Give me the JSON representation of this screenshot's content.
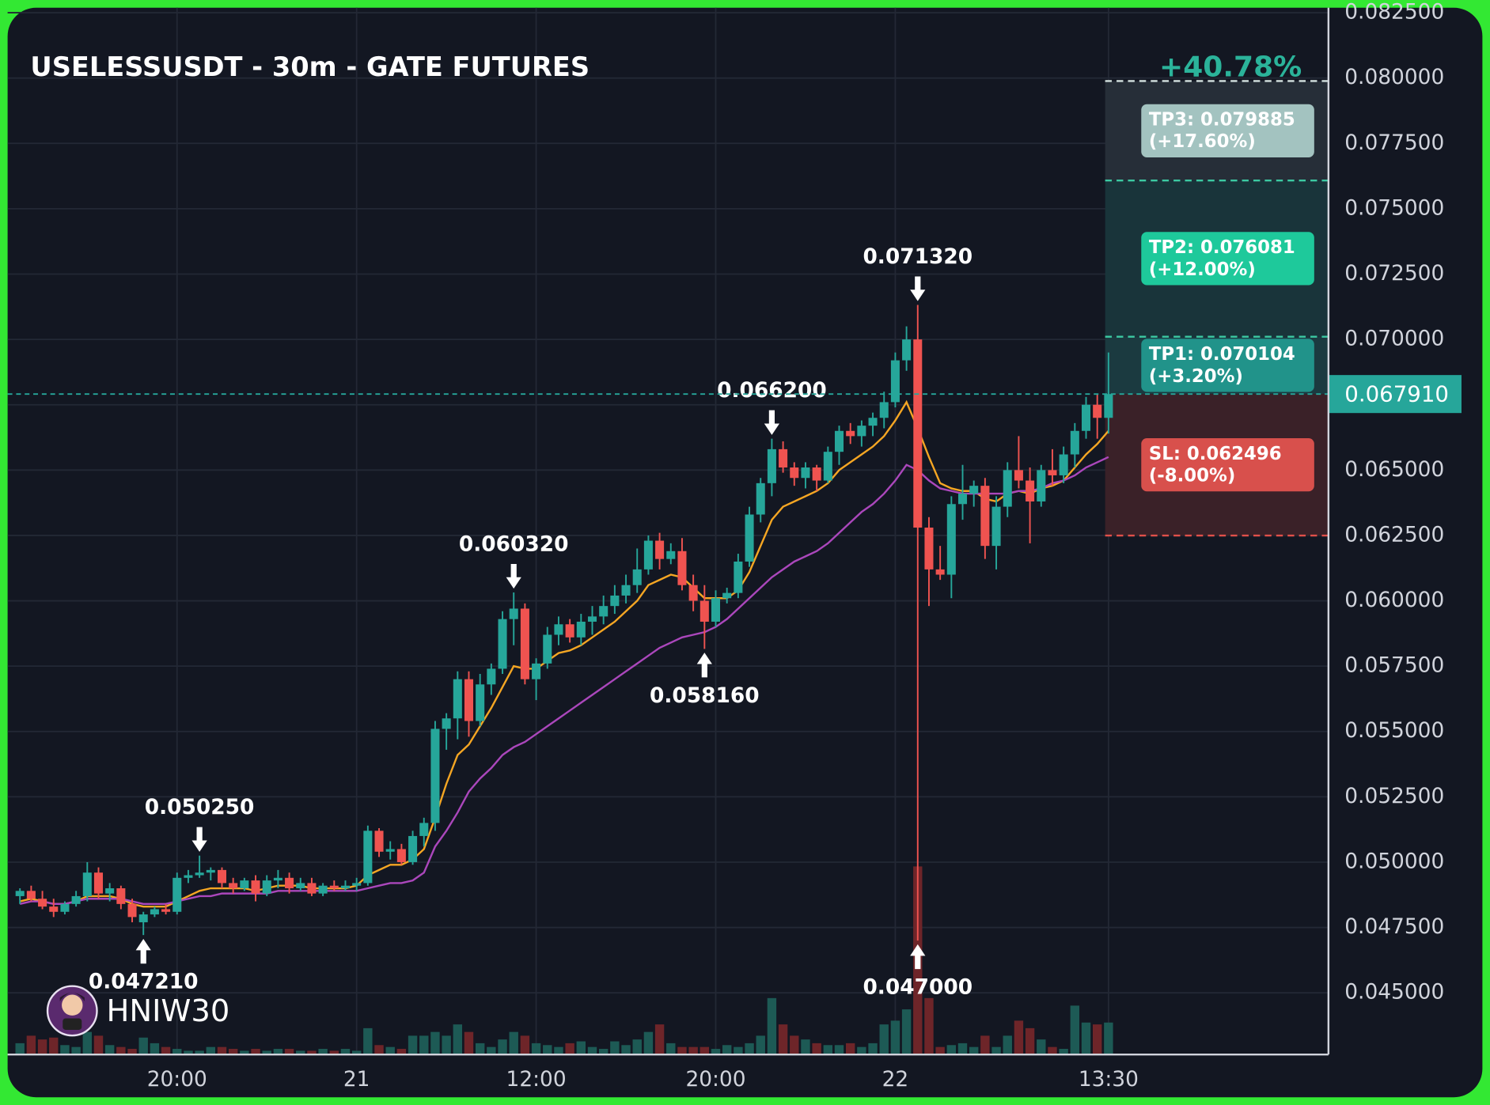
{
  "chart_data": {
    "type": "candlestick",
    "title": "USELESSUSDT - 30m - GATE FUTURES",
    "watermark": "HNIW30",
    "x": [
      0,
      1,
      2,
      3,
      4,
      5,
      6,
      7,
      8,
      9,
      10,
      11,
      12,
      13,
      14,
      15,
      16,
      17,
      18,
      19,
      20,
      21,
      22,
      23,
      24,
      25,
      26,
      27,
      28,
      29,
      30,
      31,
      32,
      33,
      34,
      35,
      36,
      37,
      38,
      39,
      40,
      41,
      42,
      43,
      44,
      45,
      46,
      47,
      48,
      49,
      50,
      51,
      52,
      53,
      54,
      55,
      56,
      57,
      58,
      59,
      60,
      61,
      62,
      63,
      64,
      65,
      66,
      67,
      68,
      69,
      70,
      71,
      72,
      73,
      74,
      75,
      76,
      77,
      78,
      79,
      80,
      81,
      82,
      83,
      84,
      85,
      86,
      87,
      88,
      89,
      90,
      91,
      92,
      93,
      94,
      95,
      96,
      97
    ],
    "open": [
      0.0487,
      0.0489,
      0.0486,
      0.0483,
      0.0481,
      0.0484,
      0.0487,
      0.0496,
      0.0488,
      0.049,
      0.0484,
      0.0477,
      0.048,
      0.0482,
      0.0481,
      0.0494,
      0.0495,
      0.0496,
      0.0497,
      0.0492,
      0.049,
      0.0493,
      0.0488,
      0.0493,
      0.0494,
      0.049,
      0.0492,
      0.0488,
      0.0491,
      0.049,
      0.0491,
      0.0492,
      0.0512,
      0.0504,
      0.0505,
      0.05,
      0.051,
      0.0515,
      0.0551,
      0.0555,
      0.057,
      0.0554,
      0.0568,
      0.0574,
      0.0593,
      0.0597,
      0.057,
      0.0576,
      0.0587,
      0.0591,
      0.0586,
      0.0592,
      0.0594,
      0.0598,
      0.0602,
      0.0606,
      0.0612,
      0.0623,
      0.0616,
      0.0619,
      0.0606,
      0.06,
      0.0592,
      0.0601,
      0.0603,
      0.0615,
      0.0633,
      0.0645,
      0.0658,
      0.0651,
      0.0647,
      0.0651,
      0.0646,
      0.0657,
      0.0665,
      0.0663,
      0.0667,
      0.067,
      0.0676,
      0.0692,
      0.07,
      0.0628,
      0.0612,
      0.061,
      0.0637,
      0.0641,
      0.0644,
      0.0621,
      0.0636,
      0.065,
      0.0646,
      0.0638,
      0.065,
      0.0648,
      0.0656,
      0.0665,
      0.0675,
      0.067
    ],
    "high": [
      0.049,
      0.0491,
      0.0489,
      0.0486,
      0.0485,
      0.0489,
      0.05,
      0.0498,
      0.0492,
      0.0491,
      0.0486,
      0.0481,
      0.0483,
      0.0484,
      0.0496,
      0.0497,
      0.05025,
      0.0498,
      0.0498,
      0.0494,
      0.0494,
      0.0495,
      0.0495,
      0.0497,
      0.0496,
      0.0494,
      0.0494,
      0.0492,
      0.0493,
      0.0493,
      0.0494,
      0.0514,
      0.0513,
      0.0508,
      0.0507,
      0.0512,
      0.0517,
      0.0554,
      0.0557,
      0.0573,
      0.0573,
      0.0572,
      0.0576,
      0.0596,
      0.06032,
      0.0599,
      0.0578,
      0.059,
      0.0594,
      0.0593,
      0.0595,
      0.0598,
      0.0602,
      0.0606,
      0.061,
      0.062,
      0.0625,
      0.0626,
      0.0622,
      0.0624,
      0.061,
      0.0606,
      0.0604,
      0.0605,
      0.0618,
      0.0636,
      0.0647,
      0.0662,
      0.0661,
      0.0653,
      0.0653,
      0.0652,
      0.0659,
      0.0667,
      0.0668,
      0.0669,
      0.0672,
      0.068,
      0.0695,
      0.0705,
      0.07132,
      0.0632,
      0.0621,
      0.064,
      0.0652,
      0.0646,
      0.0647,
      0.064,
      0.0653,
      0.0663,
      0.0651,
      0.0652,
      0.0658,
      0.0659,
      0.0668,
      0.0678,
      0.0679,
      0.0695
    ],
    "low": [
      0.0484,
      0.0485,
      0.0482,
      0.0479,
      0.048,
      0.0483,
      0.0485,
      0.0486,
      0.0485,
      0.0482,
      0.0477,
      0.04721,
      0.0479,
      0.048,
      0.048,
      0.0492,
      0.0494,
      0.0493,
      0.049,
      0.0488,
      0.0489,
      0.0485,
      0.0487,
      0.049,
      0.0488,
      0.0489,
      0.0487,
      0.0487,
      0.0489,
      0.0489,
      0.0489,
      0.0491,
      0.0502,
      0.0501,
      0.0499,
      0.0499,
      0.0506,
      0.0512,
      0.0543,
      0.0547,
      0.0548,
      0.0552,
      0.0564,
      0.0572,
      0.0583,
      0.0568,
      0.0562,
      0.0574,
      0.0583,
      0.0584,
      0.0583,
      0.0587,
      0.0591,
      0.0595,
      0.0599,
      0.0603,
      0.061,
      0.0612,
      0.0614,
      0.0604,
      0.0596,
      0.05816,
      0.059,
      0.0599,
      0.0601,
      0.0613,
      0.063,
      0.064,
      0.0649,
      0.0644,
      0.0643,
      0.0642,
      0.0645,
      0.0652,
      0.066,
      0.0659,
      0.0663,
      0.0666,
      0.0674,
      0.0688,
      0.047,
      0.0598,
      0.0608,
      0.0601,
      0.0631,
      0.0636,
      0.0616,
      0.0612,
      0.0632,
      0.0643,
      0.0622,
      0.0636,
      0.0644,
      0.0645,
      0.0651,
      0.0662,
      0.0662,
      0.0664
    ],
    "close": [
      0.0489,
      0.0486,
      0.0483,
      0.0481,
      0.0484,
      0.0487,
      0.0496,
      0.0488,
      0.049,
      0.0484,
      0.0479,
      0.048,
      0.0482,
      0.0481,
      0.0494,
      0.0495,
      0.0496,
      0.0497,
      0.0492,
      0.049,
      0.0493,
      0.0488,
      0.0493,
      0.0494,
      0.049,
      0.0492,
      0.0488,
      0.0491,
      0.049,
      0.0491,
      0.0492,
      0.0512,
      0.0504,
      0.0505,
      0.05,
      0.051,
      0.0515,
      0.0551,
      0.0555,
      0.057,
      0.0554,
      0.0568,
      0.0574,
      0.0593,
      0.0597,
      0.057,
      0.0576,
      0.0587,
      0.0591,
      0.0586,
      0.0592,
      0.0594,
      0.0598,
      0.0602,
      0.0606,
      0.0612,
      0.0623,
      0.0616,
      0.0619,
      0.0606,
      0.06,
      0.0592,
      0.0601,
      0.0603,
      0.0615,
      0.0633,
      0.0645,
      0.0658,
      0.0651,
      0.0647,
      0.0651,
      0.0646,
      0.0657,
      0.0665,
      0.0663,
      0.0667,
      0.067,
      0.0676,
      0.0692,
      0.07,
      0.0628,
      0.0612,
      0.061,
      0.0637,
      0.0641,
      0.0644,
      0.0621,
      0.0636,
      0.065,
      0.0646,
      0.0638,
      0.065,
      0.0648,
      0.0656,
      0.0665,
      0.0675,
      0.067,
      0.06791
    ],
    "volume": [
      6,
      10,
      8,
      9,
      5,
      4,
      12,
      10,
      5,
      4,
      3,
      9,
      6,
      4,
      3,
      2,
      2,
      4,
      4,
      3,
      2,
      3,
      2,
      3,
      3,
      2,
      2,
      3,
      2,
      3,
      2,
      14,
      5,
      4,
      3,
      10,
      10,
      12,
      10,
      16,
      12,
      6,
      4,
      8,
      12,
      10,
      6,
      5,
      4,
      6,
      7,
      4,
      3,
      7,
      5,
      8,
      12,
      16,
      6,
      4,
      4,
      4,
      3,
      5,
      4,
      6,
      10,
      30,
      16,
      10,
      8,
      6,
      5,
      5,
      6,
      4,
      6,
      16,
      18,
      24,
      100,
      30,
      4,
      5,
      6,
      4,
      10,
      4,
      10,
      18,
      14,
      8,
      4,
      3,
      26,
      17,
      16,
      17
    ],
    "up_color": "#26a69a",
    "down_color": "#ef5350",
    "volume_up_color": "#1d5a55",
    "volume_down_color": "#6e2529",
    "lines": [
      {
        "color": "#f5a623",
        "values": [
          0.0485,
          0.0486,
          0.0485,
          0.0484,
          0.0484,
          0.0485,
          0.0487,
          0.0487,
          0.0487,
          0.0486,
          0.0484,
          0.0483,
          0.0483,
          0.0483,
          0.0485,
          0.0487,
          0.0489,
          0.049,
          0.049,
          0.049,
          0.049,
          0.0489,
          0.049,
          0.0491,
          0.0491,
          0.0491,
          0.049,
          0.049,
          0.049,
          0.049,
          0.0491,
          0.0495,
          0.0497,
          0.0499,
          0.0499,
          0.0501,
          0.0505,
          0.0517,
          0.053,
          0.0541,
          0.0545,
          0.0552,
          0.0559,
          0.0567,
          0.0575,
          0.0574,
          0.0574,
          0.0577,
          0.058,
          0.0581,
          0.0583,
          0.0586,
          0.0589,
          0.0592,
          0.0596,
          0.06,
          0.0606,
          0.0608,
          0.061,
          0.0609,
          0.0605,
          0.0601,
          0.0601,
          0.0601,
          0.0604,
          0.0611,
          0.0621,
          0.0631,
          0.0636,
          0.0638,
          0.064,
          0.0642,
          0.0645,
          0.065,
          0.0653,
          0.0656,
          0.0659,
          0.0663,
          0.0669,
          0.0676,
          0.0666,
          0.0655,
          0.0645,
          0.0643,
          0.0642,
          0.0642,
          0.0639,
          0.0638,
          0.0641,
          0.0642,
          0.0641,
          0.0643,
          0.0644,
          0.0646,
          0.0651,
          0.0656,
          0.066,
          0.0665
        ]
      },
      {
        "color": "#ab47bc",
        "values": [
          0.0484,
          0.0485,
          0.0485,
          0.0484,
          0.0484,
          0.0485,
          0.0486,
          0.0486,
          0.0486,
          0.0486,
          0.0485,
          0.0484,
          0.0484,
          0.0484,
          0.0485,
          0.0486,
          0.0487,
          0.0487,
          0.0488,
          0.0488,
          0.0488,
          0.0488,
          0.0488,
          0.0489,
          0.0489,
          0.0489,
          0.0489,
          0.0489,
          0.0489,
          0.0489,
          0.0489,
          0.049,
          0.0491,
          0.0492,
          0.0492,
          0.0493,
          0.0496,
          0.0506,
          0.0512,
          0.0519,
          0.0527,
          0.0532,
          0.0536,
          0.0541,
          0.0544,
          0.0546,
          0.0549,
          0.0552,
          0.0555,
          0.0558,
          0.0561,
          0.0564,
          0.0567,
          0.057,
          0.0573,
          0.0576,
          0.0579,
          0.0582,
          0.0584,
          0.0586,
          0.0587,
          0.0588,
          0.059,
          0.0593,
          0.0597,
          0.0601,
          0.0605,
          0.0609,
          0.0612,
          0.0615,
          0.0617,
          0.0619,
          0.0622,
          0.0626,
          0.063,
          0.0634,
          0.0637,
          0.0641,
          0.0646,
          0.0652,
          0.065,
          0.0646,
          0.0643,
          0.0642,
          0.0641,
          0.0641,
          0.0641,
          0.0641,
          0.0641,
          0.0642,
          0.0642,
          0.0643,
          0.0645,
          0.0646,
          0.0648,
          0.0651,
          0.0653,
          0.0655
        ]
      }
    ],
    "xlim": [
      -1.1,
      116.6
    ],
    "xticks": [
      {
        "value": 14,
        "label": "20:00"
      },
      {
        "value": 30,
        "label": "21"
      },
      {
        "value": 46,
        "label": "12:00"
      },
      {
        "value": 62,
        "label": "20:00"
      },
      {
        "value": 78,
        "label": "22"
      },
      {
        "value": 97,
        "label": "13:30"
      }
    ],
    "ylim": [
      0.04264,
      0.08269
    ],
    "yticks": [
      {
        "value": 0.0825,
        "label": "0.082500"
      },
      {
        "value": 0.08,
        "label": "0.080000"
      },
      {
        "value": 0.0775,
        "label": "0.077500"
      },
      {
        "value": 0.075,
        "label": "0.075000"
      },
      {
        "value": 0.0725,
        "label": "0.072500"
      },
      {
        "value": 0.07,
        "label": "0.070000"
      },
      {
        "value": 0.0675,
        "label": "0.067500"
      },
      {
        "value": 0.065,
        "label": "0.065000"
      },
      {
        "value": 0.0625,
        "label": "0.062500"
      },
      {
        "value": 0.06,
        "label": "0.060000"
      },
      {
        "value": 0.0575,
        "label": "0.057500"
      },
      {
        "value": 0.055,
        "label": "0.055000"
      },
      {
        "value": 0.0525,
        "label": "0.052500"
      },
      {
        "value": 0.05,
        "label": "0.050000"
      },
      {
        "value": 0.0475,
        "label": "0.047500"
      },
      {
        "value": 0.045,
        "label": "0.045000"
      }
    ],
    "grid": true,
    "annotations": [
      {
        "text": "0.050250",
        "x": 16,
        "y": 0.05025,
        "side": "above"
      },
      {
        "text": "0.047210",
        "x": 11,
        "y": 0.04721,
        "side": "below"
      },
      {
        "text": "0.060320",
        "x": 44,
        "y": 0.06032,
        "side": "above"
      },
      {
        "text": "0.058160",
        "x": 61,
        "y": 0.05816,
        "side": "below"
      },
      {
        "text": "0.066200",
        "x": 67,
        "y": 0.0662,
        "side": "above"
      },
      {
        "text": "0.071320",
        "x": 80,
        "y": 0.07132,
        "side": "above"
      },
      {
        "text": "0.047000",
        "x": 80,
        "y": 0.047,
        "side": "below"
      }
    ],
    "current_price": {
      "value": 0.06791,
      "label": "0.067910",
      "color": "#26a69a"
    },
    "gain_label": "+40.78%",
    "levels": [
      {
        "value": 0.079885,
        "label": [
          "TP3: 0.079885",
          "(+17.60%)"
        ],
        "color": "#a3c3c0",
        "line_color": "#d4e2e0",
        "zone_color": "#262e38"
      },
      {
        "value": 0.076081,
        "label": [
          "TP2: 0.076081",
          "(+12.00%)"
        ],
        "color": "#1ec99b",
        "line_color": "#3cc9a2",
        "zone_color": "#19343a"
      },
      {
        "value": 0.070104,
        "label": [
          "TP1: 0.070104",
          "(+3.20%)"
        ],
        "color": "#21938a",
        "line_color": "#3cc9a2",
        "zone_color": "#1b3a40"
      },
      {
        "value": 0.062496,
        "label": [
          "SL: 0.062496",
          "(-8.00%)"
        ],
        "color": "#d8504c",
        "line_color": "#e0504a",
        "zone_color": "#3a2128"
      }
    ]
  }
}
